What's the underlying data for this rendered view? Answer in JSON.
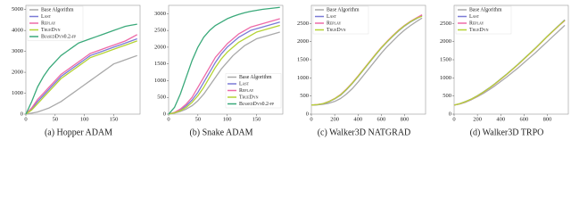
{
  "chart_data": [
    {
      "type": "line",
      "title": "(a) Hopper ADAM",
      "legend": "upper left",
      "x": [
        0,
        10,
        20,
        30,
        40,
        50,
        60,
        70,
        80,
        90,
        100,
        110,
        120,
        130,
        140,
        150,
        160,
        170,
        180,
        190
      ],
      "xlim": [
        0,
        195
      ],
      "xticks": [
        0,
        50,
        100,
        150
      ],
      "ylim": [
        0,
        5200
      ],
      "yticks": [
        0,
        1000,
        2000,
        3000,
        4000,
        5000
      ],
      "series": [
        {
          "name": "Base Algorithm",
          "color": "#a9a9a9",
          "values": [
            0,
            50,
            100,
            200,
            300,
            450,
            600,
            800,
            1000,
            1200,
            1400,
            1600,
            1800,
            2000,
            2200,
            2400,
            2500,
            2600,
            2700,
            2800
          ]
        },
        {
          "name": "Last",
          "color": "#7b7bd6",
          "values": [
            0,
            250,
            600,
            900,
            1200,
            1500,
            1800,
            2000,
            2200,
            2400,
            2600,
            2800,
            2900,
            3000,
            3100,
            3200,
            3300,
            3400,
            3500,
            3600
          ]
        },
        {
          "name": "Replay",
          "color": "#ee6aa7",
          "values": [
            0,
            300,
            700,
            1000,
            1300,
            1600,
            1900,
            2100,
            2300,
            2500,
            2700,
            2900,
            3000,
            3100,
            3200,
            3300,
            3400,
            3500,
            3650,
            3800
          ]
        },
        {
          "name": "TrueDyn",
          "color": "#b5d334",
          "values": [
            0,
            200,
            500,
            800,
            1100,
            1400,
            1700,
            1900,
            2100,
            2300,
            2500,
            2700,
            2800,
            2900,
            3000,
            3100,
            3200,
            3300,
            3400,
            3500
          ]
        },
        {
          "name": "BiasedDyn0.2-fp",
          "color": "#3aa97a",
          "values": [
            0,
            600,
            1300,
            1800,
            2200,
            2500,
            2800,
            3000,
            3200,
            3400,
            3500,
            3600,
            3700,
            3800,
            3900,
            4000,
            4100,
            4200,
            4250,
            4300
          ]
        }
      ]
    },
    {
      "type": "line",
      "title": "(b) Snake ADAM",
      "legend": "lower right",
      "x": [
        0,
        10,
        20,
        30,
        40,
        50,
        60,
        70,
        80,
        90,
        100,
        110,
        120,
        130,
        140,
        150,
        160,
        170,
        180,
        190
      ],
      "xlim": [
        0,
        195
      ],
      "xticks": [
        0,
        50,
        100,
        150
      ],
      "ylim": [
        0,
        3250
      ],
      "yticks": [
        0,
        500,
        1000,
        1500,
        2000,
        2500,
        3000
      ],
      "series": [
        {
          "name": "Base Algorithm",
          "color": "#a9a9a9",
          "values": [
            0,
            30,
            80,
            150,
            250,
            400,
            600,
            850,
            1100,
            1350,
            1550,
            1750,
            1900,
            2050,
            2150,
            2250,
            2300,
            2350,
            2400,
            2450
          ]
        },
        {
          "name": "Last",
          "color": "#7b7bd6",
          "values": [
            0,
            50,
            120,
            250,
            420,
            650,
            950,
            1250,
            1550,
            1800,
            2000,
            2150,
            2300,
            2400,
            2500,
            2550,
            2600,
            2650,
            2700,
            2750
          ]
        },
        {
          "name": "Replay",
          "color": "#ee6aa7",
          "values": [
            0,
            50,
            150,
            300,
            500,
            800,
            1100,
            1400,
            1700,
            1900,
            2100,
            2250,
            2400,
            2500,
            2600,
            2650,
            2700,
            2750,
            2800,
            2850
          ]
        },
        {
          "name": "TrueDyn",
          "color": "#b5d334",
          "values": [
            0,
            40,
            100,
            200,
            350,
            550,
            800,
            1100,
            1400,
            1650,
            1850,
            2000,
            2150,
            2250,
            2350,
            2450,
            2500,
            2550,
            2600,
            2650
          ]
        },
        {
          "name": "BiasedDyn0.2-fp",
          "color": "#3aa97a",
          "values": [
            0,
            200,
            600,
            1100,
            1600,
            2000,
            2300,
            2500,
            2650,
            2750,
            2850,
            2920,
            2980,
            3030,
            3070,
            3100,
            3130,
            3150,
            3170,
            3190
          ]
        }
      ]
    },
    {
      "type": "line",
      "title": "(c) Walker3D NATGRAD",
      "legend": "upper left",
      "x": [
        0,
        50,
        100,
        150,
        200,
        250,
        300,
        350,
        400,
        450,
        500,
        550,
        600,
        650,
        700,
        750,
        800,
        850,
        900,
        950
      ],
      "xlim": [
        0,
        980
      ],
      "xticks": [
        0,
        200,
        400,
        600,
        800
      ],
      "ylim": [
        0,
        3000
      ],
      "yticks": [
        0,
        500,
        1000,
        1500,
        2000,
        2500
      ],
      "series": [
        {
          "name": "Base Algorithm",
          "color": "#a9a9a9",
          "values": [
            250,
            255,
            270,
            300,
            350,
            430,
            550,
            700,
            880,
            1080,
            1280,
            1480,
            1680,
            1860,
            2020,
            2180,
            2320,
            2440,
            2550,
            2650
          ]
        },
        {
          "name": "Last",
          "color": "#7b7bd6",
          "values": [
            250,
            260,
            285,
            340,
            420,
            520,
            670,
            840,
            1030,
            1230,
            1430,
            1630,
            1820,
            1990,
            2150,
            2300,
            2430,
            2540,
            2630,
            2720
          ]
        },
        {
          "name": "Replay",
          "color": "#ee6aa7",
          "values": [
            250,
            265,
            290,
            350,
            430,
            540,
            690,
            860,
            1050,
            1250,
            1450,
            1650,
            1840,
            2010,
            2170,
            2320,
            2450,
            2560,
            2650,
            2740
          ]
        },
        {
          "name": "TrueDyn",
          "color": "#b5d334",
          "values": [
            250,
            262,
            288,
            345,
            425,
            530,
            680,
            850,
            1040,
            1240,
            1440,
            1640,
            1830,
            2000,
            2160,
            2310,
            2440,
            2550,
            2640,
            2700
          ]
        }
      ]
    },
    {
      "type": "line",
      "title": "(d) Walker3D TRPO",
      "legend": "upper left",
      "x": [
        0,
        50,
        100,
        150,
        200,
        250,
        300,
        350,
        400,
        450,
        500,
        550,
        600,
        650,
        700,
        750,
        800,
        850,
        900,
        950
      ],
      "xlim": [
        0,
        980
      ],
      "xticks": [
        0,
        200,
        400,
        600,
        800
      ],
      "ylim": [
        0,
        3000
      ],
      "yticks": [
        0,
        500,
        1000,
        1500,
        2000,
        2500
      ],
      "series": [
        {
          "name": "Base Algorithm",
          "color": "#a9a9a9",
          "values": [
            250,
            280,
            330,
            400,
            480,
            570,
            670,
            780,
            900,
            1020,
            1150,
            1280,
            1420,
            1560,
            1700,
            1850,
            2000,
            2150,
            2300,
            2450
          ]
        },
        {
          "name": "Last",
          "color": "#7b7bd6",
          "values": [
            250,
            290,
            350,
            420,
            510,
            610,
            720,
            840,
            970,
            1100,
            1240,
            1380,
            1530,
            1680,
            1830,
            1990,
            2150,
            2300,
            2450,
            2600
          ]
        },
        {
          "name": "Replay",
          "color": "#ee6aa7",
          "values": [
            250,
            285,
            345,
            415,
            500,
            600,
            710,
            830,
            960,
            1090,
            1230,
            1370,
            1520,
            1670,
            1820,
            1980,
            2140,
            2290,
            2440,
            2580
          ]
        },
        {
          "name": "TrueDyn",
          "color": "#b5d334",
          "values": [
            250,
            288,
            348,
            418,
            505,
            605,
            715,
            835,
            965,
            1095,
            1235,
            1375,
            1525,
            1675,
            1825,
            1985,
            2145,
            2295,
            2445,
            2590
          ]
        }
      ]
    }
  ]
}
